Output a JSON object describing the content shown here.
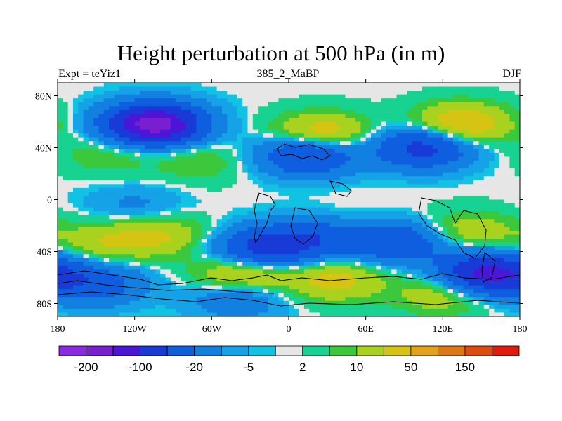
{
  "chart_data": {
    "type": "heatmap",
    "title": "Height perturbation at 500 hPa (in m)",
    "subtitle_left": "Expt = teYiz1",
    "subtitle_center": "385_2_MaBP",
    "subtitle_right": "DJF",
    "x_ticks": [
      {
        "value": -180,
        "label": "180"
      },
      {
        "value": -120,
        "label": "120W"
      },
      {
        "value": -60,
        "label": "60W"
      },
      {
        "value": 0,
        "label": "0"
      },
      {
        "value": 60,
        "label": "60E"
      },
      {
        "value": 120,
        "label": "120E"
      },
      {
        "value": 180,
        "label": "180"
      }
    ],
    "y_ticks": [
      {
        "value": 80,
        "label": "80N"
      },
      {
        "value": 40,
        "label": "40N"
      },
      {
        "value": 0,
        "label": "0"
      },
      {
        "value": -40,
        "label": "40S"
      },
      {
        "value": -80,
        "label": "80S"
      }
    ],
    "xlim": [
      -180,
      180
    ],
    "ylim": [
      -90,
      90
    ],
    "colorbar": {
      "colors": [
        "#8a2be2",
        "#7a1fd0",
        "#4b16d8",
        "#1a3ad8",
        "#0f5ee0",
        "#1280e0",
        "#15a2e6",
        "#12c2e2",
        "#e6e6e6",
        "#17d290",
        "#3cc83c",
        "#a8d21e",
        "#d6c412",
        "#e2a21a",
        "#dc7816",
        "#e04c10",
        "#e01a0c"
      ],
      "labels": [
        {
          "after_index": 0,
          "text": "-200"
        },
        {
          "after_index": 2,
          "text": "-100"
        },
        {
          "after_index": 4,
          "text": "-20"
        },
        {
          "after_index": 6,
          "text": "-5"
        },
        {
          "after_index": 8,
          "text": "2"
        },
        {
          "after_index": 10,
          "text": "10"
        },
        {
          "after_index": 12,
          "text": "50"
        },
        {
          "after_index": 14,
          "text": "150"
        }
      ]
    },
    "anomaly_centers": [
      {
        "lon": -105,
        "lat": 58,
        "value": -200
      },
      {
        "lon": 15,
        "lat": 35,
        "value": -100
      },
      {
        "lon": 105,
        "lat": 40,
        "value": -100
      },
      {
        "lon": 25,
        "lat": 50,
        "value": 70
      },
      {
        "lon": 135,
        "lat": 58,
        "value": 70
      },
      {
        "lon": -140,
        "lat": 35,
        "value": 20
      },
      {
        "lon": -70,
        "lat": 30,
        "value": 20
      },
      {
        "lon": -120,
        "lat": -5,
        "value": -20
      },
      {
        "lon": 55,
        "lat": -15,
        "value": 5
      },
      {
        "lon": -100,
        "lat": -28,
        "value": 40
      },
      {
        "lon": -145,
        "lat": -33,
        "value": 35
      },
      {
        "lon": -20,
        "lat": -38,
        "value": -100
      },
      {
        "lon": 20,
        "lat": -30,
        "value": -60
      },
      {
        "lon": 85,
        "lat": -33,
        "value": -80
      },
      {
        "lon": 140,
        "lat": -25,
        "value": 35
      },
      {
        "lon": -35,
        "lat": -57,
        "value": 60
      },
      {
        "lon": 35,
        "lat": -62,
        "value": 50
      },
      {
        "lon": 120,
        "lat": -72,
        "value": 40
      },
      {
        "lon": 155,
        "lat": -57,
        "value": -150
      },
      {
        "lon": -150,
        "lat": -65,
        "value": -60
      },
      {
        "lon": -40,
        "lat": -75,
        "value": -40
      }
    ]
  }
}
